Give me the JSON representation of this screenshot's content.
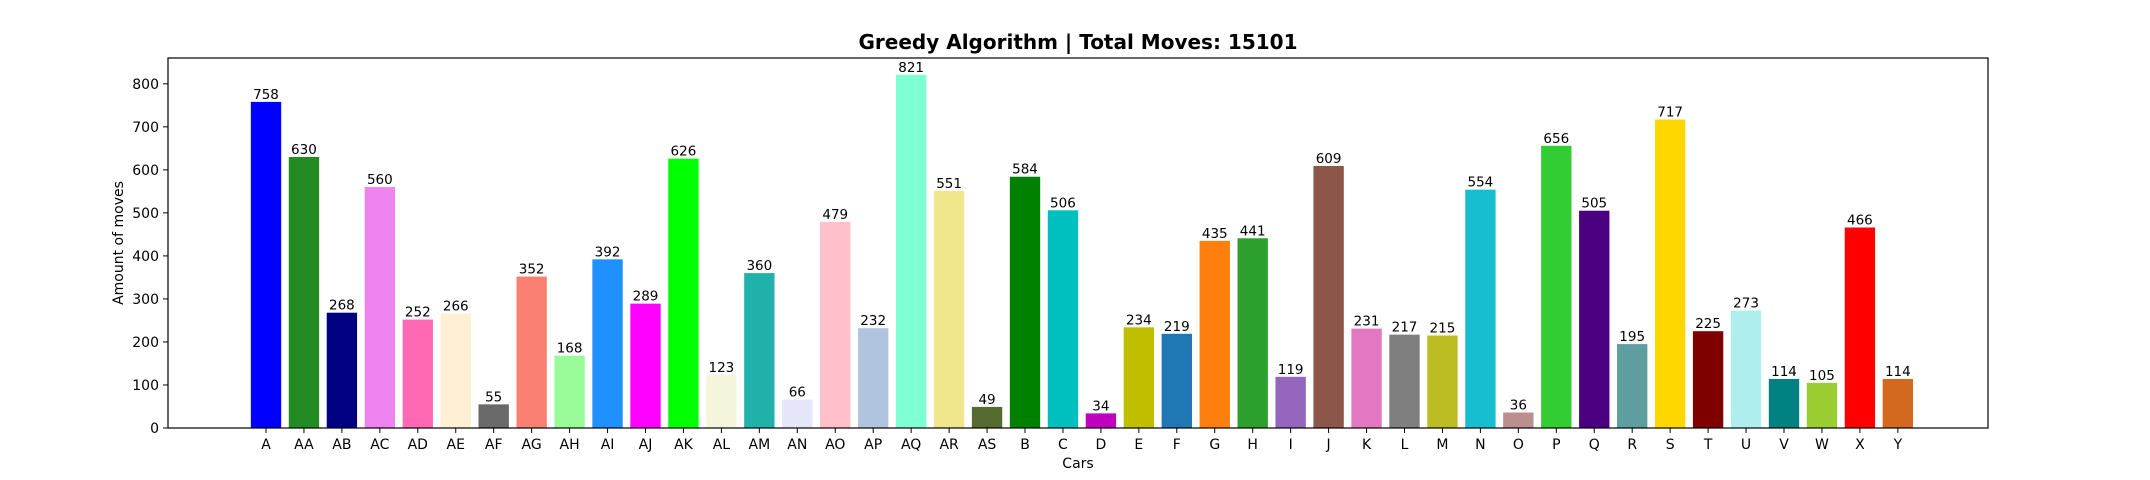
{
  "chart_data": {
    "type": "bar",
    "title": "Greedy Algorithm | Total Moves: 15101",
    "xlabel": "Cars",
    "ylabel": "Amount of moves",
    "ylim": [
      0,
      860
    ],
    "yticks": [
      0,
      100,
      200,
      300,
      400,
      500,
      600,
      700,
      800
    ],
    "grid": false,
    "categories": [
      "A",
      "AA",
      "AB",
      "AC",
      "AD",
      "AE",
      "AF",
      "AG",
      "AH",
      "AI",
      "AJ",
      "AK",
      "AL",
      "AM",
      "AN",
      "AO",
      "AP",
      "AQ",
      "AR",
      "AS",
      "B",
      "C",
      "D",
      "E",
      "F",
      "G",
      "H",
      "I",
      "J",
      "K",
      "L",
      "M",
      "N",
      "O",
      "P",
      "Q",
      "R",
      "S",
      "T",
      "U",
      "V",
      "W",
      "X",
      "Y"
    ],
    "values": [
      758,
      630,
      268,
      560,
      252,
      266,
      55,
      352,
      168,
      392,
      289,
      626,
      123,
      360,
      66,
      479,
      232,
      821,
      551,
      49,
      584,
      506,
      34,
      234,
      219,
      435,
      441,
      119,
      609,
      231,
      217,
      215,
      554,
      36,
      656,
      505,
      195,
      717,
      225,
      273,
      114,
      105,
      466,
      114
    ],
    "colors": [
      "#0000ff",
      "#228b22",
      "#000080",
      "#ee82ee",
      "#ff69b4",
      "#ffefd5",
      "#696969",
      "#fa8072",
      "#98fb98",
      "#1e90ff",
      "#ff00ff",
      "#00ff00",
      "#f5f5dc",
      "#20b2aa",
      "#e6e6fa",
      "#ffc0cb",
      "#b0c4de",
      "#7fffd4",
      "#f0e68c",
      "#556b2f",
      "#008000",
      "#00bfbf",
      "#bf00bf",
      "#bfbf00",
      "#1f77b4",
      "#ff7f0e",
      "#2ca02c",
      "#9467bd",
      "#8c564b",
      "#e377c2",
      "#7f7f7f",
      "#bcbd22",
      "#17becf",
      "#bc8f8f",
      "#32cd32",
      "#4b0082",
      "#5f9ea0",
      "#ffd700",
      "#800000",
      "#afeeee",
      "#008080",
      "#9acd32",
      "#ff0000",
      "#d2691e"
    ]
  }
}
